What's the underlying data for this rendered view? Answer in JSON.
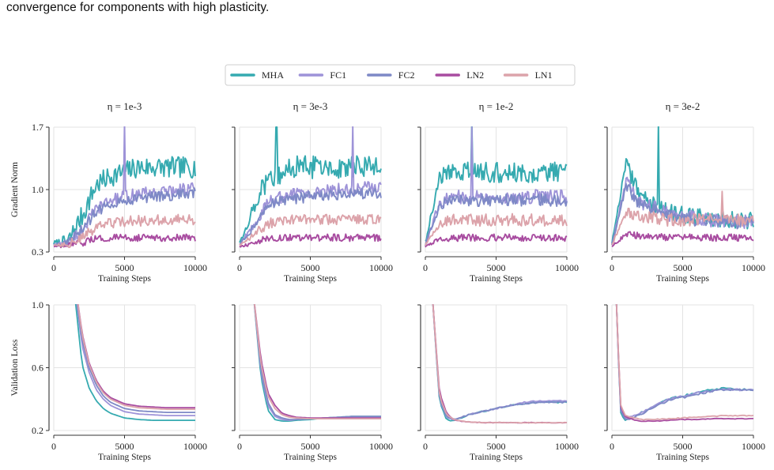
{
  "caption": "convergence for components with high plasticity.",
  "legend": [
    {
      "name": "MHA",
      "color": "#35aab0"
    },
    {
      "name": "FC1",
      "color": "#9e93d8"
    },
    {
      "name": "FC2",
      "color": "#7e89c6"
    },
    {
      "name": "LN2",
      "color": "#a84ca0"
    },
    {
      "name": "LN1",
      "color": "#dca3aa"
    }
  ],
  "chart_data": [
    {
      "type": "line",
      "row": "gradient",
      "title": "η = 1e-3",
      "xlabel": "Training Steps",
      "ylabel": "Gradient Norm",
      "xlim": [
        0,
        10000
      ],
      "ylim": [
        0.3,
        1.7
      ],
      "xticks": [
        "0",
        "5000",
        "10000"
      ],
      "yticks": [
        "0.3",
        "1.0",
        "1.7"
      ],
      "grid": true,
      "x": [
        0,
        1000,
        2000,
        3000,
        4000,
        5000,
        6000,
        7000,
        8000,
        9000,
        10000
      ],
      "series": [
        {
          "name": "MHA",
          "values": [
            0.4,
            0.42,
            0.7,
            1.05,
            1.15,
            1.2,
            1.25,
            1.25,
            1.25,
            1.25,
            1.25
          ],
          "noise": 0.12
        },
        {
          "name": "FC1",
          "values": [
            0.38,
            0.4,
            0.55,
            0.78,
            0.88,
            0.92,
            0.95,
            0.97,
            0.98,
            1.0,
            1.02
          ],
          "noise": 0.07,
          "spike_at": 5000,
          "spike_to": 1.75
        },
        {
          "name": "FC2",
          "values": [
            0.38,
            0.4,
            0.55,
            0.75,
            0.85,
            0.88,
            0.9,
            0.92,
            0.93,
            0.95,
            0.96
          ],
          "noise": 0.06
        },
        {
          "name": "LN2",
          "values": [
            0.36,
            0.37,
            0.4,
            0.45,
            0.46,
            0.46,
            0.46,
            0.46,
            0.46,
            0.46,
            0.46
          ],
          "noise": 0.04
        },
        {
          "name": "LN1",
          "values": [
            0.38,
            0.39,
            0.45,
            0.58,
            0.62,
            0.64,
            0.65,
            0.66,
            0.66,
            0.66,
            0.66
          ],
          "noise": 0.06
        }
      ]
    },
    {
      "type": "line",
      "row": "gradient",
      "title": "η = 3e-3",
      "xlabel": "Training Steps",
      "ylabel": "",
      "xlim": [
        0,
        10000
      ],
      "ylim": [
        0.3,
        1.7
      ],
      "xticks": [
        "0",
        "5000",
        "10000"
      ],
      "yticks": [],
      "grid": true,
      "x": [
        0,
        1000,
        2000,
        3000,
        4000,
        5000,
        6000,
        7000,
        8000,
        9000,
        10000
      ],
      "series": [
        {
          "name": "MHA",
          "values": [
            0.4,
            0.8,
            1.15,
            1.2,
            1.25,
            1.25,
            1.25,
            1.25,
            1.25,
            1.25,
            1.25
          ],
          "noise": 0.13,
          "spike_at": 2600,
          "spike_to": 1.7
        },
        {
          "name": "FC1",
          "values": [
            0.38,
            0.6,
            0.85,
            0.92,
            0.95,
            0.97,
            0.98,
            1.0,
            1.0,
            1.02,
            1.02
          ],
          "noise": 0.07,
          "spike_at": 8000,
          "spike_to": 1.72
        },
        {
          "name": "FC2",
          "values": [
            0.38,
            0.58,
            0.82,
            0.88,
            0.9,
            0.92,
            0.93,
            0.94,
            0.95,
            0.96,
            0.96
          ],
          "noise": 0.06
        },
        {
          "name": "LN2",
          "values": [
            0.36,
            0.4,
            0.45,
            0.46,
            0.46,
            0.46,
            0.46,
            0.46,
            0.46,
            0.46,
            0.46
          ],
          "noise": 0.04
        },
        {
          "name": "LN1",
          "values": [
            0.38,
            0.5,
            0.62,
            0.65,
            0.66,
            0.66,
            0.66,
            0.66,
            0.66,
            0.66,
            0.66
          ],
          "noise": 0.06
        }
      ]
    },
    {
      "type": "line",
      "row": "gradient",
      "title": "η = 1e-2",
      "xlabel": "Training Steps",
      "ylabel": "",
      "xlim": [
        0,
        10000
      ],
      "ylim": [
        0.3,
        1.7
      ],
      "xticks": [
        "0",
        "5000",
        "10000"
      ],
      "yticks": [],
      "grid": true,
      "x": [
        0,
        1000,
        2000,
        3000,
        4000,
        5000,
        6000,
        7000,
        8000,
        9000,
        10000
      ],
      "series": [
        {
          "name": "MHA",
          "values": [
            0.4,
            1.15,
            1.2,
            1.2,
            1.2,
            1.2,
            1.2,
            1.2,
            1.2,
            1.2,
            1.2
          ],
          "noise": 0.12,
          "spike_at": 3300,
          "spike_to": 1.75
        },
        {
          "name": "FC1",
          "values": [
            0.38,
            0.85,
            0.92,
            0.92,
            0.92,
            0.92,
            0.92,
            0.92,
            0.92,
            0.92,
            0.92
          ],
          "noise": 0.08,
          "spike_at": 3300,
          "spike_to": 1.7
        },
        {
          "name": "FC2",
          "values": [
            0.38,
            0.82,
            0.88,
            0.88,
            0.88,
            0.88,
            0.88,
            0.88,
            0.88,
            0.88,
            0.88
          ],
          "noise": 0.07
        },
        {
          "name": "LN2",
          "values": [
            0.36,
            0.45,
            0.46,
            0.46,
            0.46,
            0.46,
            0.46,
            0.46,
            0.46,
            0.46,
            0.46
          ],
          "noise": 0.04
        },
        {
          "name": "LN1",
          "values": [
            0.38,
            0.62,
            0.66,
            0.66,
            0.66,
            0.66,
            0.66,
            0.66,
            0.66,
            0.66,
            0.66
          ],
          "noise": 0.07
        }
      ]
    },
    {
      "type": "line",
      "row": "gradient",
      "title": "η = 3e-2",
      "xlabel": "Training Steps",
      "ylabel": "",
      "xlim": [
        0,
        10000
      ],
      "ylim": [
        0.3,
        1.7
      ],
      "xticks": [
        "0",
        "5000",
        "10000"
      ],
      "yticks": [],
      "grid": true,
      "x": [
        0,
        1000,
        2000,
        3000,
        4000,
        5000,
        6000,
        7000,
        8000,
        9000,
        10000
      ],
      "series": [
        {
          "name": "MHA",
          "values": [
            0.4,
            1.3,
            0.9,
            0.85,
            0.75,
            0.72,
            0.7,
            0.68,
            0.66,
            0.65,
            0.65
          ],
          "noise": 0.1,
          "spike_at": 3300,
          "spike_to": 1.75
        },
        {
          "name": "FC1",
          "values": [
            0.38,
            1.1,
            0.85,
            0.8,
            0.72,
            0.7,
            0.68,
            0.66,
            0.65,
            0.64,
            0.63
          ],
          "noise": 0.08
        },
        {
          "name": "FC2",
          "values": [
            0.38,
            1.05,
            0.82,
            0.78,
            0.7,
            0.68,
            0.66,
            0.65,
            0.64,
            0.63,
            0.62
          ],
          "noise": 0.07
        },
        {
          "name": "LN2",
          "values": [
            0.36,
            0.5,
            0.48,
            0.47,
            0.46,
            0.46,
            0.46,
            0.46,
            0.46,
            0.46,
            0.46
          ],
          "noise": 0.04
        },
        {
          "name": "LN1",
          "values": [
            0.38,
            0.75,
            0.7,
            0.68,
            0.66,
            0.66,
            0.66,
            0.66,
            0.66,
            0.66,
            0.66
          ],
          "noise": 0.07,
          "spike_at": 7800,
          "spike_to": 0.98
        }
      ]
    },
    {
      "type": "line",
      "row": "loss",
      "title": "",
      "xlabel": "Training Steps",
      "ylabel": "Validation Loss",
      "xlim": [
        0,
        10000
      ],
      "ylim": [
        0.2,
        1.0
      ],
      "xticks": [
        "0",
        "5000",
        "10000"
      ],
      "yticks": [
        "0.2",
        "0.6",
        "1.0"
      ],
      "grid": true,
      "x": [
        1500,
        2000,
        2500,
        3000,
        3500,
        4000,
        5000,
        6000,
        7000,
        8000,
        9000,
        10000
      ],
      "series": [
        {
          "name": "MHA",
          "values": [
            1.05,
            0.62,
            0.47,
            0.39,
            0.34,
            0.31,
            0.28,
            0.27,
            0.265,
            0.265,
            0.265,
            0.265
          ],
          "noise": 0
        },
        {
          "name": "FC1",
          "values": [
            1.1,
            0.74,
            0.57,
            0.46,
            0.4,
            0.36,
            0.32,
            0.305,
            0.3,
            0.295,
            0.295,
            0.295
          ],
          "noise": 0
        },
        {
          "name": "FC2",
          "values": [
            1.12,
            0.78,
            0.6,
            0.49,
            0.42,
            0.38,
            0.34,
            0.325,
            0.32,
            0.315,
            0.315,
            0.315
          ],
          "noise": 0
        },
        {
          "name": "LN2",
          "values": [
            1.15,
            0.82,
            0.63,
            0.52,
            0.45,
            0.41,
            0.37,
            0.355,
            0.35,
            0.345,
            0.345,
            0.345
          ],
          "noise": 0
        },
        {
          "name": "LN1",
          "values": [
            1.15,
            0.81,
            0.62,
            0.51,
            0.44,
            0.4,
            0.36,
            0.345,
            0.34,
            0.335,
            0.335,
            0.335
          ],
          "noise": 0
        }
      ]
    },
    {
      "type": "line",
      "row": "loss",
      "title": "",
      "xlabel": "Training Steps",
      "ylabel": "",
      "xlim": [
        0,
        10000
      ],
      "ylim": [
        0.2,
        1.0
      ],
      "xticks": [
        "0",
        "5000",
        "10000"
      ],
      "yticks": [],
      "grid": true,
      "x": [
        1000,
        1500,
        2000,
        2500,
        3000,
        3500,
        4000,
        5000,
        6000,
        7000,
        8000,
        9000,
        10000
      ],
      "series": [
        {
          "name": "MHA",
          "values": [
            1.05,
            0.55,
            0.33,
            0.27,
            0.26,
            0.26,
            0.265,
            0.27,
            0.28,
            0.285,
            0.29,
            0.29,
            0.29
          ],
          "noise": 0
        },
        {
          "name": "FC1",
          "values": [
            1.05,
            0.58,
            0.36,
            0.29,
            0.27,
            0.265,
            0.27,
            0.275,
            0.28,
            0.28,
            0.285,
            0.285,
            0.285
          ],
          "noise": 0
        },
        {
          "name": "FC2",
          "values": [
            1.05,
            0.6,
            0.38,
            0.3,
            0.28,
            0.27,
            0.27,
            0.275,
            0.28,
            0.285,
            0.29,
            0.29,
            0.29
          ],
          "noise": 0
        },
        {
          "name": "LN2",
          "values": [
            1.05,
            0.66,
            0.44,
            0.36,
            0.31,
            0.295,
            0.285,
            0.28,
            0.28,
            0.28,
            0.28,
            0.28,
            0.28
          ],
          "noise": 0
        },
        {
          "name": "LN1",
          "values": [
            1.05,
            0.63,
            0.42,
            0.34,
            0.3,
            0.285,
            0.28,
            0.275,
            0.275,
            0.275,
            0.275,
            0.275,
            0.275
          ],
          "noise": 0
        }
      ]
    },
    {
      "type": "line",
      "row": "loss",
      "title": "",
      "xlabel": "Training Steps",
      "ylabel": "",
      "xlim": [
        0,
        10000
      ],
      "ylim": [
        0.2,
        1.0
      ],
      "xticks": [
        "0",
        "5000",
        "10000"
      ],
      "yticks": [],
      "grid": true,
      "x": [
        500,
        1000,
        1500,
        2000,
        2500,
        3000,
        4000,
        5000,
        6000,
        7000,
        8000,
        9000,
        10000
      ],
      "series": [
        {
          "name": "MHA",
          "values": [
            1.05,
            0.38,
            0.27,
            0.26,
            0.28,
            0.3,
            0.32,
            0.34,
            0.36,
            0.37,
            0.38,
            0.38,
            0.38
          ],
          "noise": 0.004
        },
        {
          "name": "FC1",
          "values": [
            1.05,
            0.4,
            0.28,
            0.27,
            0.28,
            0.3,
            0.32,
            0.34,
            0.36,
            0.38,
            0.39,
            0.39,
            0.39
          ],
          "noise": 0.004
        },
        {
          "name": "FC2",
          "values": [
            1.05,
            0.4,
            0.29,
            0.27,
            0.28,
            0.3,
            0.32,
            0.34,
            0.36,
            0.37,
            0.38,
            0.38,
            0.38
          ],
          "noise": 0.004
        },
        {
          "name": "LN2",
          "values": [
            1.05,
            0.44,
            0.31,
            0.27,
            0.26,
            0.255,
            0.25,
            0.25,
            0.25,
            0.25,
            0.25,
            0.25,
            0.25
          ],
          "noise": 0.002
        },
        {
          "name": "LN1",
          "values": [
            1.05,
            0.42,
            0.3,
            0.27,
            0.26,
            0.255,
            0.25,
            0.25,
            0.25,
            0.25,
            0.25,
            0.25,
            0.25
          ],
          "noise": 0.002
        }
      ]
    },
    {
      "type": "line",
      "row": "loss",
      "title": "",
      "xlabel": "Training Steps",
      "ylabel": "",
      "xlim": [
        0,
        10000
      ],
      "ylim": [
        0.2,
        1.0
      ],
      "xticks": [
        "0",
        "5000",
        "10000"
      ],
      "yticks": [],
      "grid": true,
      "x": [
        300,
        600,
        900,
        1500,
        2000,
        3000,
        4000,
        5000,
        6000,
        7000,
        8000,
        9000,
        10000
      ],
      "series": [
        {
          "name": "MHA",
          "values": [
            1.05,
            0.32,
            0.27,
            0.28,
            0.31,
            0.36,
            0.4,
            0.42,
            0.44,
            0.46,
            0.47,
            0.46,
            0.46
          ],
          "noise": 0.006
        },
        {
          "name": "FC1",
          "values": [
            1.05,
            0.34,
            0.28,
            0.29,
            0.31,
            0.36,
            0.4,
            0.42,
            0.44,
            0.45,
            0.46,
            0.46,
            0.46
          ],
          "noise": 0.006
        },
        {
          "name": "FC2",
          "values": [
            1.05,
            0.33,
            0.27,
            0.28,
            0.3,
            0.35,
            0.39,
            0.41,
            0.43,
            0.45,
            0.46,
            0.46,
            0.46
          ],
          "noise": 0.006
        },
        {
          "name": "LN2",
          "values": [
            1.05,
            0.36,
            0.29,
            0.27,
            0.26,
            0.26,
            0.265,
            0.27,
            0.27,
            0.275,
            0.275,
            0.275,
            0.275
          ],
          "noise": 0.002
        },
        {
          "name": "LN1",
          "values": [
            1.05,
            0.37,
            0.3,
            0.28,
            0.27,
            0.27,
            0.275,
            0.28,
            0.285,
            0.29,
            0.295,
            0.295,
            0.295
          ],
          "noise": 0.003
        }
      ]
    }
  ]
}
